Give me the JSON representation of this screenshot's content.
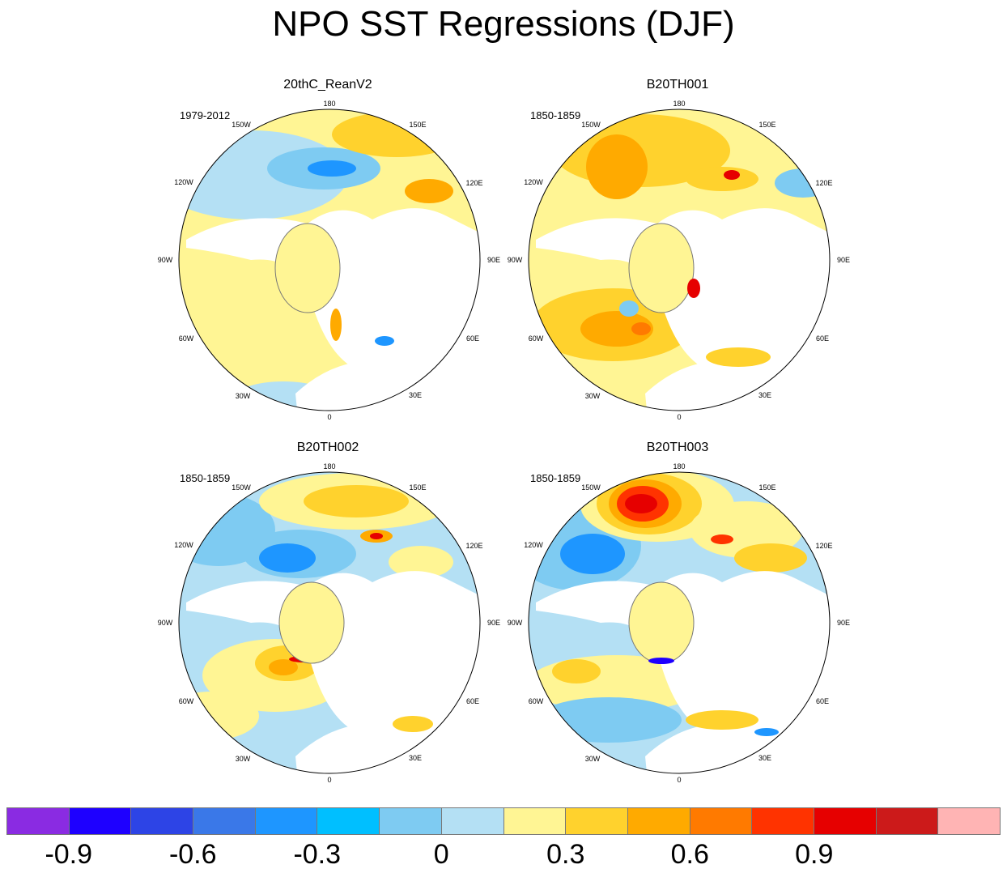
{
  "title": "NPO SST Regressions (DJF)",
  "panels": [
    {
      "name": "20thC_ReanV2",
      "period": "1979-2012"
    },
    {
      "name": "B20TH001",
      "period": "1850-1859"
    },
    {
      "name": "B20TH002",
      "period": "1850-1859"
    },
    {
      "name": "B20TH003",
      "period": "1850-1859"
    }
  ],
  "longitude_labels": {
    "deg180": "180",
    "deg150E": "150E",
    "deg120E": "120E",
    "deg90E": "90E",
    "deg60E": "60E",
    "deg30E": "30E",
    "deg0": "0",
    "deg30W": "30W",
    "deg60W": "60W",
    "deg90W": "90W",
    "deg120W": "120W",
    "deg150W": "150W"
  },
  "colorbar": {
    "colors": [
      "#8a2be2",
      "#1e00ff",
      "#2d44e6",
      "#3a78e8",
      "#1e96ff",
      "#00bfff",
      "#7ecbf2",
      "#b4e0f4",
      "#fff594",
      "#ffd22d",
      "#ffaa00",
      "#ff7a00",
      "#ff3300",
      "#e60000",
      "#cc1a1a",
      "#ffb4b4"
    ],
    "tick_labels": [
      "-0.9",
      "-0.6",
      "-0.3",
      "0",
      "0.3",
      "0.6",
      "0.9"
    ],
    "tick_boundaries": [
      1,
      3,
      5,
      7,
      9,
      11,
      13
    ]
  }
}
